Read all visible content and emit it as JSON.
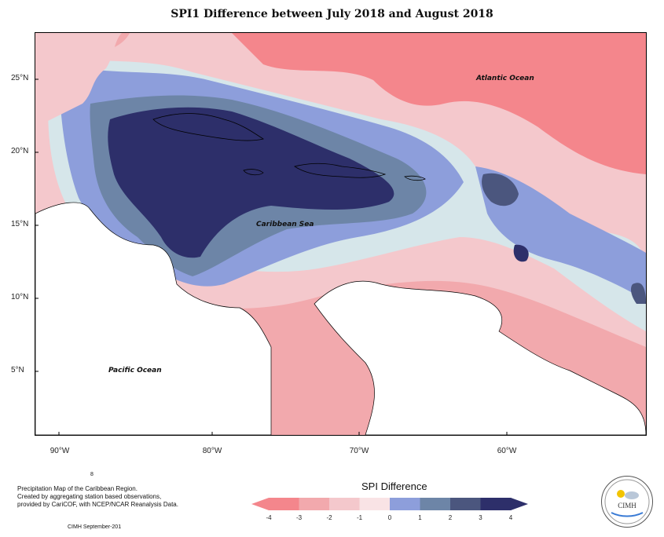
{
  "title": "SPI1 Difference between July 2018 and August 2018",
  "map": {
    "ocean_labels": {
      "atlantic": "Atlantic Ocean",
      "caribbean": "Caribbean Sea",
      "pacific": "Pacific Ocean"
    },
    "lat_labels": [
      "25°N",
      "20°N",
      "15°N",
      "10°N",
      "5°N"
    ],
    "lon_labels": [
      "90°W",
      "80°W",
      "70°W",
      "60°W"
    ]
  },
  "legend": {
    "title": "SPI Difference",
    "ticks": [
      "-4",
      "-3",
      "-2",
      "-1",
      "0",
      "1",
      "2",
      "3",
      "4"
    ],
    "colors": [
      "#f4868c",
      "#f2a9ad",
      "#f4c8cc",
      "#f9e3e5",
      "#d6e6ea",
      "#8d9edb",
      "#6d85a7",
      "#4b567e",
      "#2d2f6a"
    ]
  },
  "footer": {
    "page_mark": "8",
    "line1": "Precipitation Map of the Caribbean Region.",
    "line2": "Created by aggregating station based observations,",
    "line3": "provided by CariCOF, with NCEP/NCAR Reanalysis Data.",
    "credit": "CIMH September-201"
  },
  "logo": {
    "text": "CIMH",
    "icon": "cimh-logo-icon"
  }
}
